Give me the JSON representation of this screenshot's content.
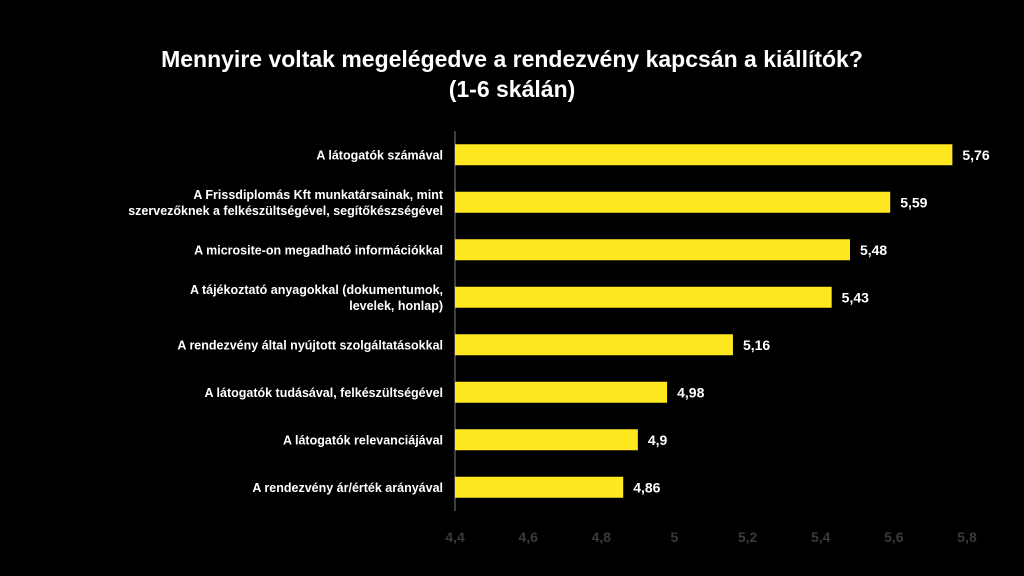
{
  "chart_data": {
    "type": "bar",
    "orientation": "horizontal",
    "title": "Mennyire voltak megelégedve a rendezvény kapcsán a kiállítók?",
    "subtitle": "(1-6 skálán)",
    "categories": [
      [
        "A látogatók számával"
      ],
      [
        "A Frissdiplomás Kft munkatársainak, mint",
        "szervezőknek a felkészültségével, segítőkészségével"
      ],
      [
        "A microsite-on megadható információkkal"
      ],
      [
        "A tájékoztató anyagokkal (dokumentumok,",
        "levelek, honlap)"
      ],
      [
        "A rendezvény által nyújtott szolgáltatásokkal"
      ],
      [
        "A látogatók tudásával, felkészültségével"
      ],
      [
        "A látogatók relevanciájával"
      ],
      [
        "A rendezvény ár/érték arányával"
      ]
    ],
    "values": [
      5.76,
      5.59,
      5.48,
      5.43,
      5.16,
      4.98,
      4.9,
      4.86
    ],
    "value_labels": [
      "5,76",
      "5,59",
      "5,48",
      "5,43",
      "5,16",
      "4,98",
      "4,9",
      "4,86"
    ],
    "xlim": [
      4.4,
      5.8
    ],
    "x_ticks": [
      4.4,
      4.6,
      4.8,
      5.0,
      5.2,
      5.4,
      5.6,
      5.8
    ],
    "x_tick_labels": [
      "4,4",
      "4,6",
      "4,8",
      "5",
      "5,2",
      "5,4",
      "5,6",
      "5,8"
    ],
    "xlabel": "",
    "ylabel": "",
    "grid": false,
    "legend": "none",
    "colors": {
      "bar": "#FFE81F",
      "background": "#000000",
      "text": "#FFFFFF",
      "tick": "#3A3A3A",
      "axis": "#555555"
    }
  }
}
